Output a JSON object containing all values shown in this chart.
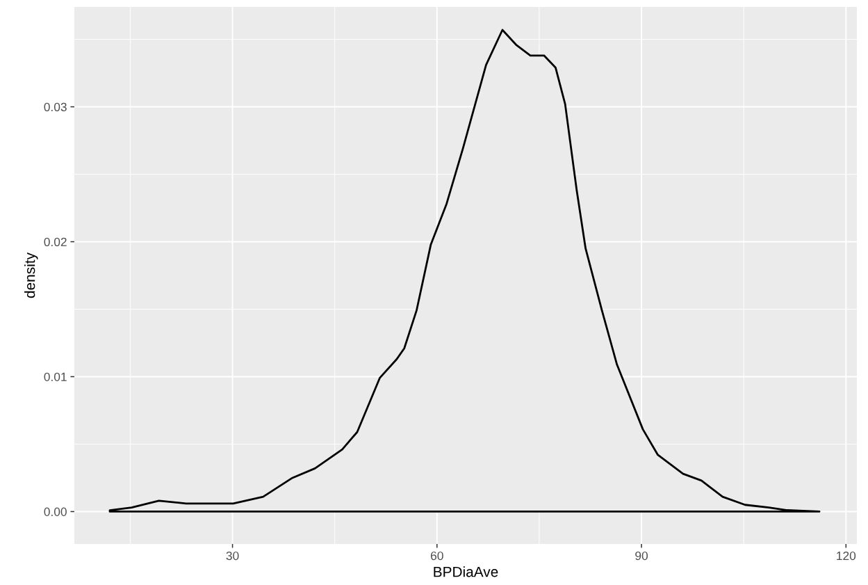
{
  "chart_data": {
    "type": "area",
    "xlabel": "BPDiaAve",
    "ylabel": "density",
    "xlim": [
      6.8,
      121.6
    ],
    "xticks": [
      30,
      60,
      90,
      120
    ],
    "ylim": [
      -0.0024,
      0.0374
    ],
    "yticks": [
      {
        "value": 0,
        "label": "0.00"
      },
      {
        "value": 0.01,
        "label": "0.01"
      },
      {
        "value": 0.02,
        "label": "0.02"
      },
      {
        "value": 0.03,
        "label": "0.03"
      }
    ],
    "grid": true,
    "series": [
      {
        "color": "#000000",
        "x": [
          12.0,
          15.2,
          19.2,
          23.2,
          26.1,
          30.1,
          34.5,
          38.8,
          42.1,
          46.1,
          48.3,
          51.6,
          54.1,
          55.2,
          57.0,
          59.1,
          61.4,
          63.8,
          67.2,
          69.6,
          71.6,
          73.7,
          75.7,
          77.4,
          78.8,
          80.5,
          81.8,
          84.2,
          86.4,
          90.2,
          92.4,
          96.1,
          98.8,
          101.9,
          105.2,
          108.7,
          111.4,
          116.1
        ],
        "values": [
          0.0001,
          0.0003,
          0.0008,
          0.0006,
          0.0006,
          0.0006,
          0.0011,
          0.0025,
          0.0032,
          0.0046,
          0.0059,
          0.0099,
          0.0113,
          0.0121,
          0.0149,
          0.0198,
          0.0228,
          0.0269,
          0.0331,
          0.0357,
          0.0346,
          0.0338,
          0.0338,
          0.0329,
          0.0302,
          0.0238,
          0.0195,
          0.0149,
          0.0109,
          0.0061,
          0.0042,
          0.0028,
          0.0023,
          0.0011,
          0.0005,
          0.0003,
          0.0001,
          0.0
        ]
      }
    ]
  }
}
